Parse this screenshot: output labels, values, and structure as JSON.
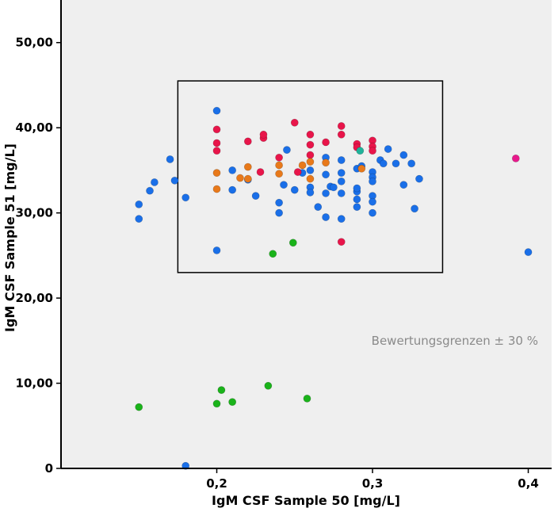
{
  "chart_data": {
    "type": "scatter",
    "xlabel": "IgM CSF Sample 50 [mg/L]",
    "ylabel": "IgM CSF Sample 51 [mg/L]",
    "xlim": [
      0.1,
      0.415
    ],
    "ylim": [
      0,
      55
    ],
    "x_ticks": [
      {
        "value": 0.2,
        "label": "0,2"
      },
      {
        "value": 0.3,
        "label": "0,3"
      },
      {
        "value": 0.4,
        "label": "0,4"
      }
    ],
    "y_ticks": [
      {
        "value": 0,
        "label": "0"
      },
      {
        "value": 10,
        "label": "10,00"
      },
      {
        "value": 20,
        "label": "20,00"
      },
      {
        "value": 30,
        "label": "30,00"
      },
      {
        "value": 40,
        "label": "40,00"
      },
      {
        "value": 50,
        "label": "50,00"
      }
    ],
    "grid": false,
    "plot_background": "#efefef",
    "annotation": "Bewertungsgrenzen ± 30 %",
    "evaluation_box": {
      "x_min": 0.175,
      "x_max": 0.345,
      "y_min": 23,
      "y_max": 45.5
    },
    "series": [
      {
        "color": "#1a6fe8",
        "points": [
          [
            0.15,
            31.0
          ],
          [
            0.15,
            29.3
          ],
          [
            0.157,
            32.6
          ],
          [
            0.16,
            33.6
          ],
          [
            0.17,
            36.3
          ],
          [
            0.173,
            33.8
          ],
          [
            0.18,
            31.8
          ],
          [
            0.18,
            0.3
          ],
          [
            0.2,
            42.0
          ],
          [
            0.2,
            25.6
          ],
          [
            0.21,
            35.0
          ],
          [
            0.21,
            32.7
          ],
          [
            0.22,
            33.9
          ],
          [
            0.225,
            32.0
          ],
          [
            0.24,
            31.2
          ],
          [
            0.24,
            30.0
          ],
          [
            0.243,
            33.3
          ],
          [
            0.245,
            37.4
          ],
          [
            0.25,
            32.7
          ],
          [
            0.255,
            34.7
          ],
          [
            0.26,
            35.0
          ],
          [
            0.26,
            33.0
          ],
          [
            0.26,
            32.4
          ],
          [
            0.265,
            30.7
          ],
          [
            0.27,
            34.5
          ],
          [
            0.27,
            32.3
          ],
          [
            0.27,
            29.5
          ],
          [
            0.27,
            36.5
          ],
          [
            0.273,
            33.1
          ],
          [
            0.275,
            33.0
          ],
          [
            0.28,
            36.2
          ],
          [
            0.28,
            34.7
          ],
          [
            0.28,
            33.7
          ],
          [
            0.28,
            32.3
          ],
          [
            0.28,
            29.3
          ],
          [
            0.29,
            32.5
          ],
          [
            0.29,
            31.6
          ],
          [
            0.29,
            30.7
          ],
          [
            0.29,
            35.2
          ],
          [
            0.29,
            32.9
          ],
          [
            0.293,
            35.5
          ],
          [
            0.3,
            34.8
          ],
          [
            0.3,
            34.2
          ],
          [
            0.3,
            33.7
          ],
          [
            0.3,
            32.0
          ],
          [
            0.3,
            31.3
          ],
          [
            0.3,
            30.0
          ],
          [
            0.305,
            36.2
          ],
          [
            0.307,
            35.8
          ],
          [
            0.31,
            37.5
          ],
          [
            0.315,
            35.8
          ],
          [
            0.32,
            36.8
          ],
          [
            0.32,
            33.3
          ],
          [
            0.325,
            35.8
          ],
          [
            0.327,
            30.5
          ],
          [
            0.33,
            34.0
          ],
          [
            0.4,
            25.4
          ]
        ]
      },
      {
        "color": "#e8154a",
        "points": [
          [
            0.2,
            39.8
          ],
          [
            0.2,
            38.2
          ],
          [
            0.2,
            37.3
          ],
          [
            0.22,
            38.4
          ],
          [
            0.23,
            38.8
          ],
          [
            0.23,
            39.2
          ],
          [
            0.228,
            34.8
          ],
          [
            0.24,
            36.5
          ],
          [
            0.25,
            40.6
          ],
          [
            0.252,
            34.8
          ],
          [
            0.26,
            39.2
          ],
          [
            0.26,
            38.0
          ],
          [
            0.26,
            36.8
          ],
          [
            0.27,
            38.3
          ],
          [
            0.28,
            40.2
          ],
          [
            0.28,
            39.2
          ],
          [
            0.28,
            26.6
          ],
          [
            0.29,
            38.1
          ],
          [
            0.29,
            37.7
          ],
          [
            0.3,
            38.5
          ],
          [
            0.3,
            37.8
          ],
          [
            0.3,
            37.3
          ]
        ]
      },
      {
        "color": "#e8791a",
        "points": [
          [
            0.2,
            34.7
          ],
          [
            0.2,
            32.8
          ],
          [
            0.215,
            34.1
          ],
          [
            0.22,
            35.4
          ],
          [
            0.22,
            34.0
          ],
          [
            0.24,
            35.6
          ],
          [
            0.24,
            34.6
          ],
          [
            0.255,
            35.6
          ],
          [
            0.26,
            36.0
          ],
          [
            0.26,
            34.0
          ],
          [
            0.27,
            35.9
          ],
          [
            0.293,
            35.2
          ]
        ]
      },
      {
        "color": "#1ab31a",
        "points": [
          [
            0.15,
            7.2
          ],
          [
            0.2,
            7.6
          ],
          [
            0.203,
            9.2
          ],
          [
            0.21,
            7.8
          ],
          [
            0.233,
            9.7
          ],
          [
            0.236,
            25.2
          ],
          [
            0.249,
            26.5
          ],
          [
            0.258,
            8.2
          ]
        ]
      },
      {
        "color": "#20b29a",
        "points": [
          [
            0.292,
            37.3
          ]
        ]
      },
      {
        "color": "#e8198c",
        "points": [
          [
            0.392,
            36.4
          ]
        ]
      }
    ]
  }
}
